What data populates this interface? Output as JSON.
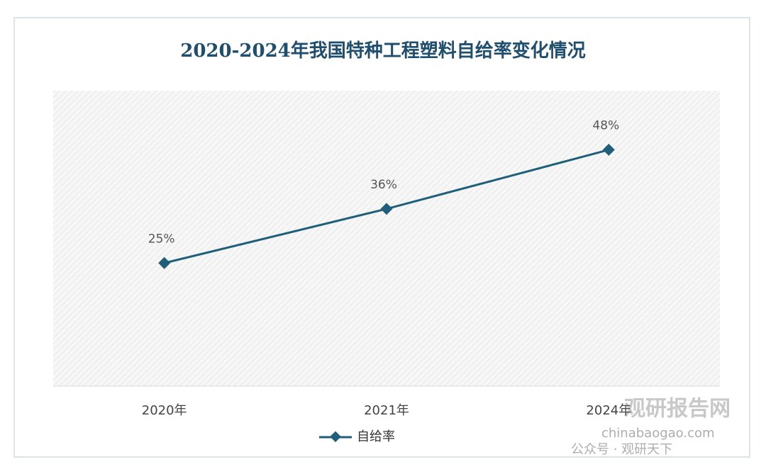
{
  "chart_data": {
    "type": "line",
    "title": "2020-2024年我国特种工程塑料自给率变化情况",
    "categories": [
      "2020年",
      "2021年",
      "2024年"
    ],
    "series": [
      {
        "name": "自给率",
        "color": "#1f5f7a",
        "values": [
          25,
          36,
          48
        ],
        "value_labels": [
          "25%",
          "36%",
          "48%"
        ]
      }
    ],
    "ylim": [
      0,
      60
    ]
  },
  "watermark": {
    "title": "观研报告网",
    "url": "chinabaogao.com",
    "account": "公众号 · 观研天下"
  }
}
